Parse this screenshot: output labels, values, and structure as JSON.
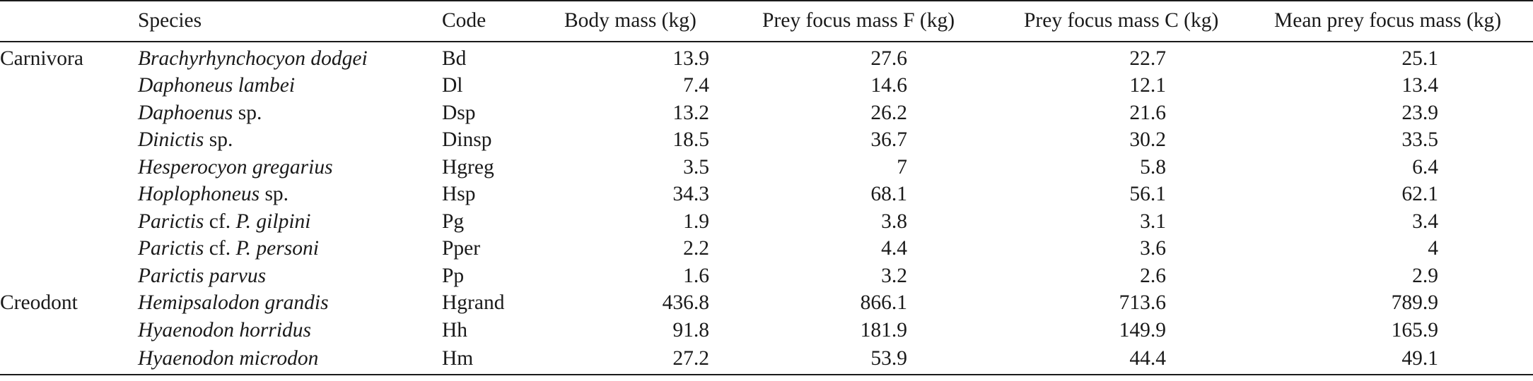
{
  "table": {
    "headers": {
      "group": "",
      "species": "Species",
      "code": "Code",
      "body_mass": "Body mass (kg)",
      "prey_f": "Prey focus mass F (kg)",
      "prey_c": "Prey focus mass C (kg)",
      "mean": "Mean prey focus mass (kg)"
    },
    "rows": [
      {
        "group": "Carnivora",
        "genus": "Brachyrhynchocyon dodgei",
        "rest": "",
        "code": "Bd",
        "body_mass": "13.9",
        "prey_f": "27.6",
        "prey_c": "22.7",
        "mean": "25.1"
      },
      {
        "group": "",
        "genus": "Daphoneus lambei",
        "rest": "",
        "code": "Dl",
        "body_mass": "7.4",
        "prey_f": "14.6",
        "prey_c": "12.1",
        "mean": "13.4"
      },
      {
        "group": "",
        "genus": "Daphoenus",
        "rest": " sp.",
        "code": "Dsp",
        "body_mass": "13.2",
        "prey_f": "26.2",
        "prey_c": "21.6",
        "mean": "23.9"
      },
      {
        "group": "",
        "genus": "Dinictis",
        "rest": " sp.",
        "code": "Dinsp",
        "body_mass": "18.5",
        "prey_f": "36.7",
        "prey_c": "30.2",
        "mean": "33.5"
      },
      {
        "group": "",
        "genus": "Hesperocyon gregarius",
        "rest": "",
        "code": "Hgreg",
        "body_mass": "3.5",
        "prey_f": "7",
        "prey_c": "5.8",
        "mean": "6.4"
      },
      {
        "group": "",
        "genus": "Hoplophoneus",
        "rest": " sp.",
        "code": "Hsp",
        "body_mass": "34.3",
        "prey_f": "68.1",
        "prey_c": "56.1",
        "mean": "62.1"
      },
      {
        "group": "",
        "genus": "Parictis",
        "rest": " cf. ",
        "epithet": "P. gilpini",
        "code": "Pg",
        "body_mass": "1.9",
        "prey_f": "3.8",
        "prey_c": "3.1",
        "mean": "3.4"
      },
      {
        "group": "",
        "genus": "Parictis",
        "rest": " cf. ",
        "epithet": "P. personi",
        "code": "Pper",
        "body_mass": "2.2",
        "prey_f": "4.4",
        "prey_c": "3.6",
        "mean": "4"
      },
      {
        "group": "",
        "genus": "Parictis parvus",
        "rest": "",
        "code": "Pp",
        "body_mass": "1.6",
        "prey_f": "3.2",
        "prey_c": "2.6",
        "mean": "2.9"
      },
      {
        "group": "Creodont",
        "genus": "Hemipsalodon grandis",
        "rest": "",
        "code": "Hgrand",
        "body_mass": "436.8",
        "prey_f": "866.1",
        "prey_c": "713.6",
        "mean": "789.9"
      },
      {
        "group": "",
        "genus": "Hyaenodon horridus",
        "rest": "",
        "code": "Hh",
        "body_mass": "91.8",
        "prey_f": "181.9",
        "prey_c": "149.9",
        "mean": "165.9"
      },
      {
        "group": "",
        "genus": "Hyaenodon microdon",
        "rest": "",
        "code": "Hm",
        "body_mass": "27.2",
        "prey_f": "53.9",
        "prey_c": "44.4",
        "mean": "49.1"
      }
    ]
  }
}
